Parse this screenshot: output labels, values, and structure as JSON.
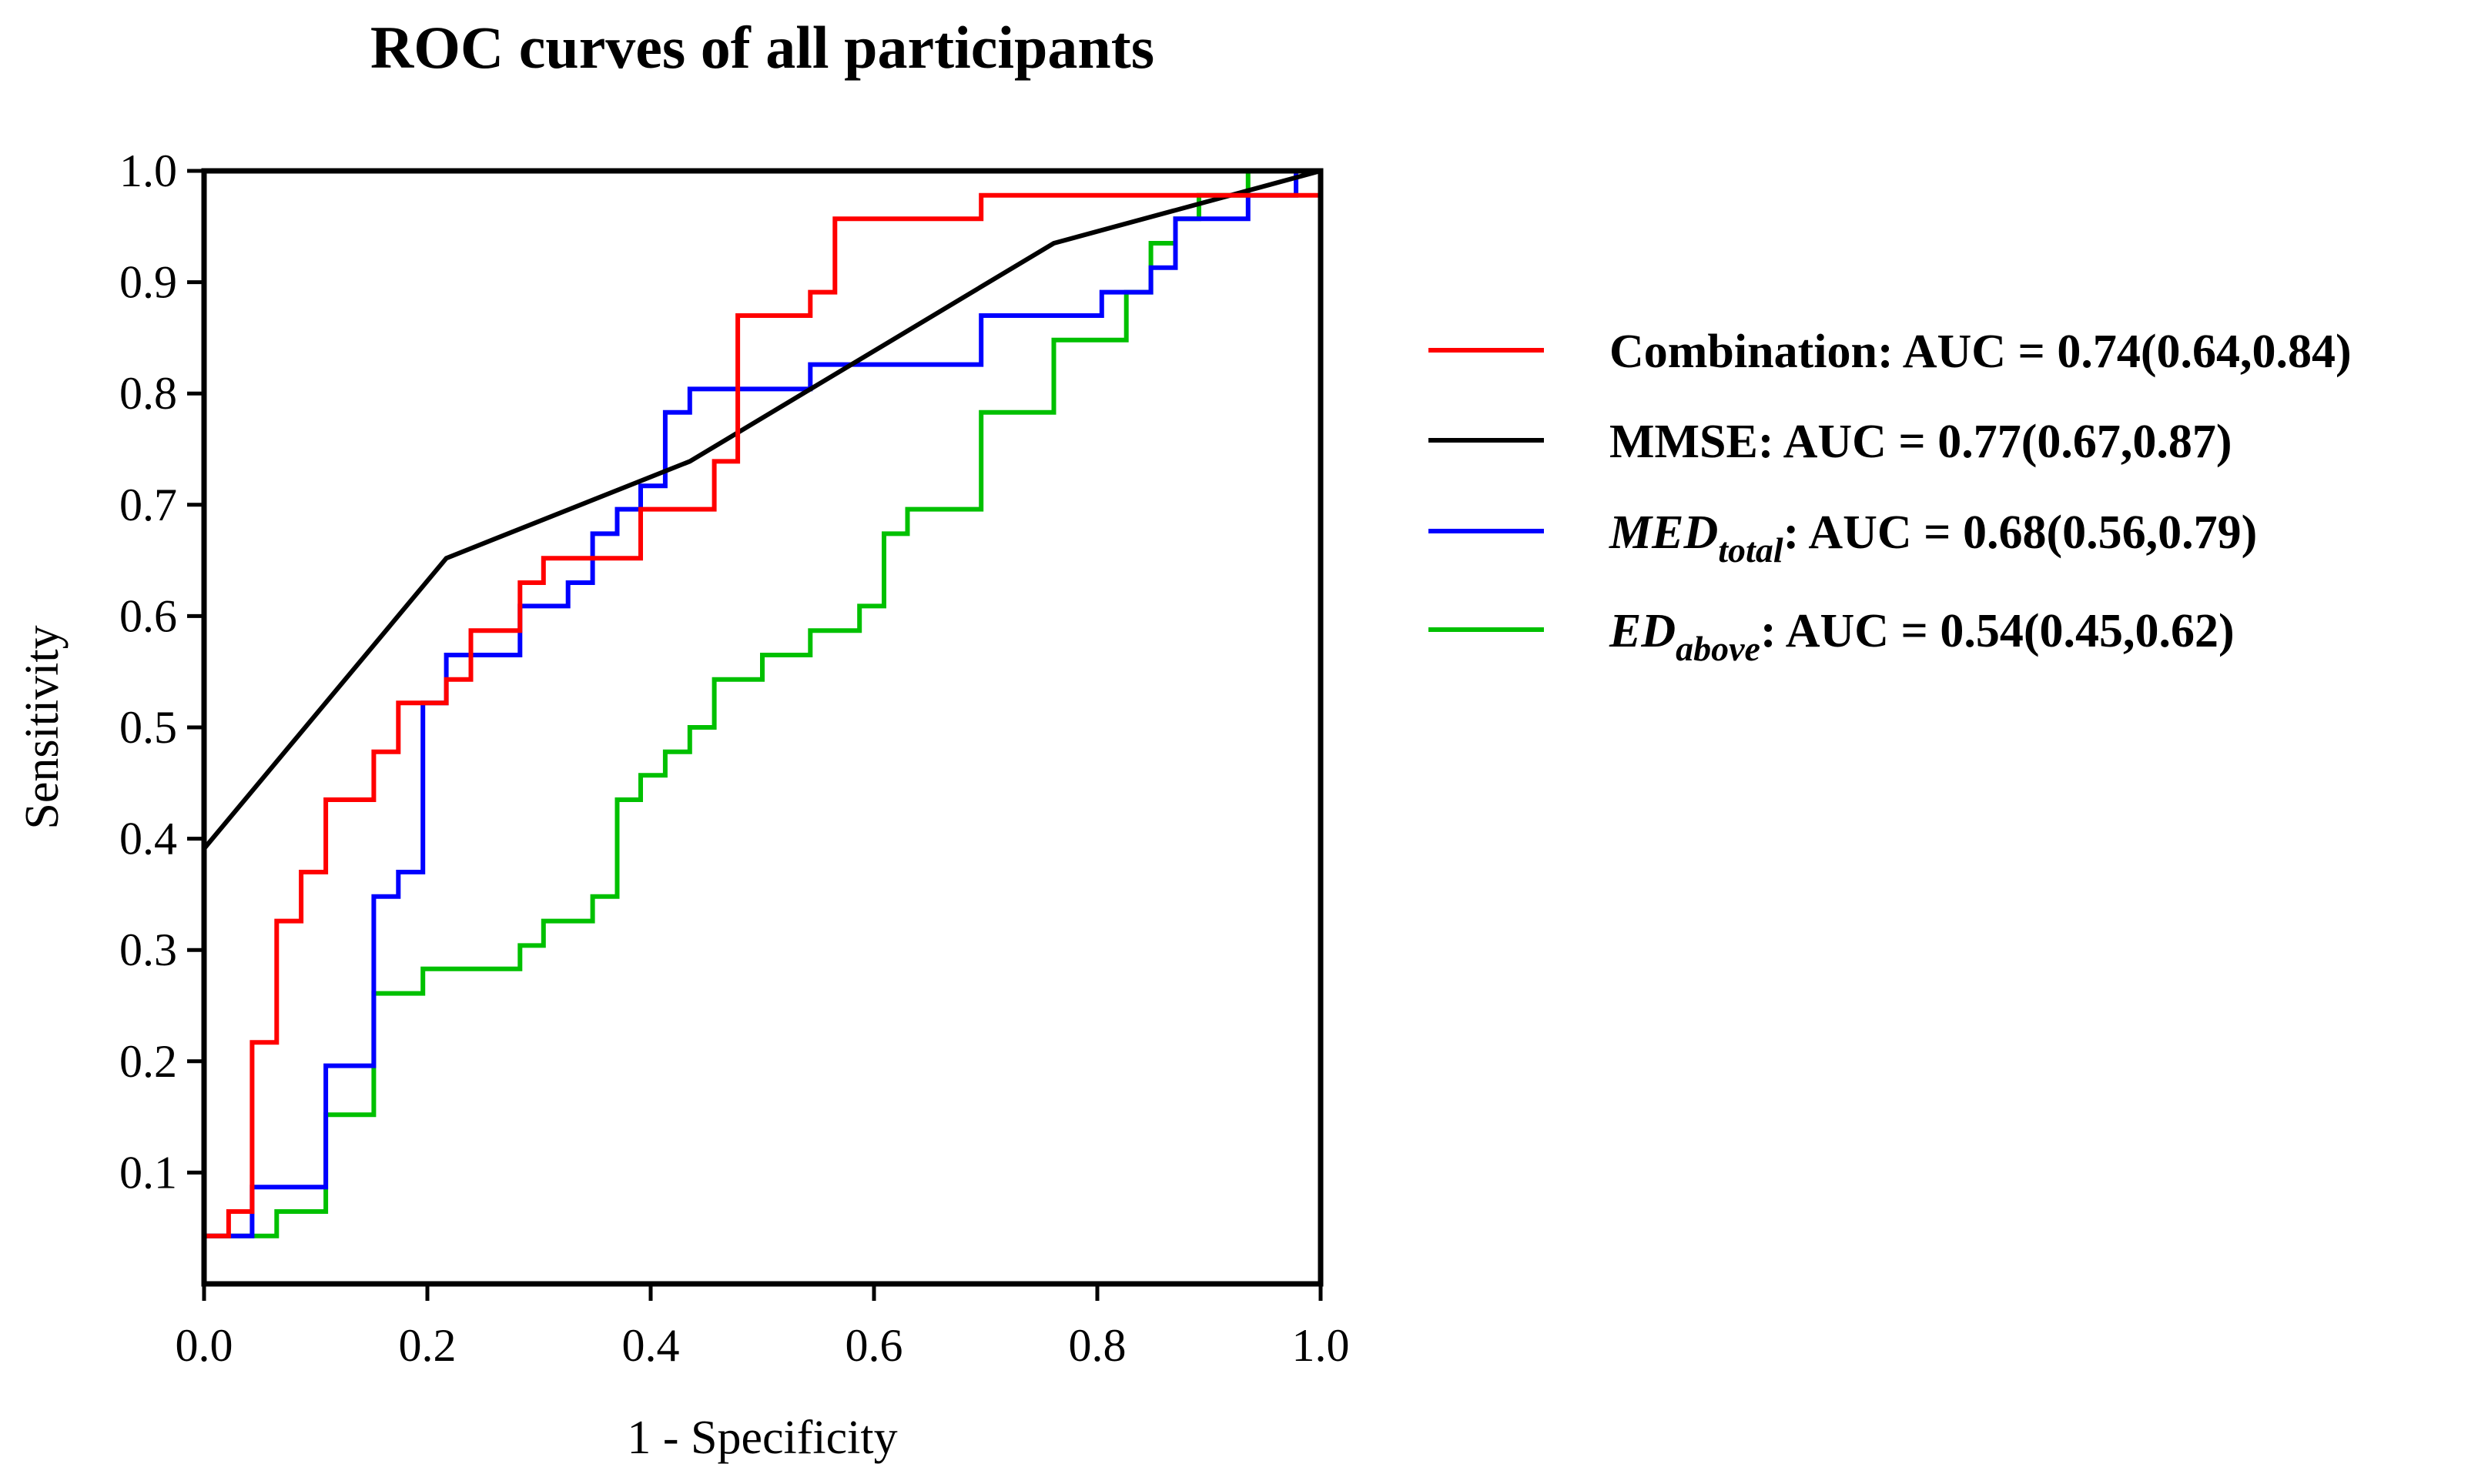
{
  "chart_data": {
    "type": "line",
    "title": "ROC curves of all participants",
    "xlabel": "1 - Specificity",
    "ylabel": "Sensitivity",
    "xlim": [
      0,
      1
    ],
    "ylim": [
      0,
      1
    ],
    "xticks": [
      "0.0",
      "0.2",
      "0.4",
      "0.6",
      "0.8",
      "1.0"
    ],
    "yticks": [
      "0.1",
      "0.2",
      "0.3",
      "0.4",
      "0.5",
      "0.6",
      "0.7",
      "0.8",
      "0.9",
      "1.0"
    ],
    "grid": false,
    "legend_position": "right",
    "series": [
      {
        "name": "Combination",
        "label_main": "Combination",
        "label_sub": "",
        "label_rest": ": AUC = 0.74(0.64,0.84)",
        "color": "#ff0000",
        "step": true,
        "points": [
          [
            0,
            0
          ],
          [
            0,
            0.043
          ],
          [
            0.022,
            0.043
          ],
          [
            0.022,
            0.065
          ],
          [
            0.043,
            0.065
          ],
          [
            0.043,
            0.217
          ],
          [
            0.065,
            0.217
          ],
          [
            0.065,
            0.326
          ],
          [
            0.087,
            0.326
          ],
          [
            0.087,
            0.37
          ],
          [
            0.109,
            0.37
          ],
          [
            0.109,
            0.435
          ],
          [
            0.152,
            0.435
          ],
          [
            0.152,
            0.478
          ],
          [
            0.174,
            0.478
          ],
          [
            0.174,
            0.522
          ],
          [
            0.217,
            0.522
          ],
          [
            0.217,
            0.543
          ],
          [
            0.239,
            0.543
          ],
          [
            0.239,
            0.587
          ],
          [
            0.283,
            0.587
          ],
          [
            0.283,
            0.63
          ],
          [
            0.304,
            0.63
          ],
          [
            0.304,
            0.652
          ],
          [
            0.391,
            0.652
          ],
          [
            0.391,
            0.696
          ],
          [
            0.457,
            0.696
          ],
          [
            0.457,
            0.739
          ],
          [
            0.478,
            0.739
          ],
          [
            0.478,
            0.87
          ],
          [
            0.543,
            0.87
          ],
          [
            0.543,
            0.891
          ],
          [
            0.565,
            0.891
          ],
          [
            0.565,
            0.957
          ],
          [
            0.696,
            0.957
          ],
          [
            0.696,
            0.978
          ],
          [
            1,
            0.978
          ],
          [
            1,
            1
          ]
        ]
      },
      {
        "name": "MMSE",
        "label_main": "MMSE",
        "label_sub": "",
        "label_rest": ": AUC = 0.77(0.67,0.87)",
        "color": "#000000",
        "step": false,
        "points": [
          [
            0,
            0.391
          ],
          [
            0.217,
            0.652
          ],
          [
            0.435,
            0.739
          ],
          [
            0.761,
            0.935
          ],
          [
            1,
            1
          ]
        ]
      },
      {
        "name": "MEDtotal",
        "label_main": "MED",
        "label_sub": "total",
        "label_rest": ": AUC = 0.68(0.56,0.79)",
        "color": "#0000ff",
        "step": true,
        "points": [
          [
            0,
            0
          ],
          [
            0,
            0.043
          ],
          [
            0.043,
            0.043
          ],
          [
            0.043,
            0.087
          ],
          [
            0.109,
            0.087
          ],
          [
            0.109,
            0.196
          ],
          [
            0.152,
            0.196
          ],
          [
            0.152,
            0.348
          ],
          [
            0.174,
            0.348
          ],
          [
            0.174,
            0.37
          ],
          [
            0.196,
            0.37
          ],
          [
            0.196,
            0.522
          ],
          [
            0.217,
            0.522
          ],
          [
            0.217,
            0.565
          ],
          [
            0.283,
            0.565
          ],
          [
            0.283,
            0.609
          ],
          [
            0.326,
            0.609
          ],
          [
            0.326,
            0.63
          ],
          [
            0.348,
            0.63
          ],
          [
            0.348,
            0.674
          ],
          [
            0.37,
            0.674
          ],
          [
            0.37,
            0.696
          ],
          [
            0.391,
            0.696
          ],
          [
            0.391,
            0.717
          ],
          [
            0.413,
            0.717
          ],
          [
            0.413,
            0.783
          ],
          [
            0.435,
            0.783
          ],
          [
            0.435,
            0.804
          ],
          [
            0.543,
            0.804
          ],
          [
            0.543,
            0.826
          ],
          [
            0.696,
            0.826
          ],
          [
            0.696,
            0.87
          ],
          [
            0.804,
            0.87
          ],
          [
            0.804,
            0.891
          ],
          [
            0.848,
            0.891
          ],
          [
            0.848,
            0.913
          ],
          [
            0.87,
            0.913
          ],
          [
            0.87,
            0.957
          ],
          [
            0.935,
            0.957
          ],
          [
            0.935,
            0.978
          ],
          [
            0.978,
            0.978
          ],
          [
            0.978,
            1
          ],
          [
            1,
            1
          ]
        ]
      },
      {
        "name": "EDabove",
        "label_main": "ED",
        "label_sub": "above",
        "label_rest": ": AUC = 0.54(0.45,0.62)",
        "color": "#00c000",
        "step": true,
        "points": [
          [
            0,
            0
          ],
          [
            0,
            0.043
          ],
          [
            0.065,
            0.043
          ],
          [
            0.065,
            0.065
          ],
          [
            0.109,
            0.065
          ],
          [
            0.109,
            0.152
          ],
          [
            0.152,
            0.152
          ],
          [
            0.152,
            0.261
          ],
          [
            0.196,
            0.261
          ],
          [
            0.196,
            0.283
          ],
          [
            0.283,
            0.283
          ],
          [
            0.283,
            0.304
          ],
          [
            0.304,
            0.304
          ],
          [
            0.304,
            0.326
          ],
          [
            0.348,
            0.326
          ],
          [
            0.348,
            0.348
          ],
          [
            0.37,
            0.348
          ],
          [
            0.37,
            0.435
          ],
          [
            0.391,
            0.435
          ],
          [
            0.391,
            0.457
          ],
          [
            0.413,
            0.457
          ],
          [
            0.413,
            0.478
          ],
          [
            0.435,
            0.478
          ],
          [
            0.435,
            0.5
          ],
          [
            0.457,
            0.5
          ],
          [
            0.457,
            0.543
          ],
          [
            0.5,
            0.543
          ],
          [
            0.5,
            0.565
          ],
          [
            0.543,
            0.565
          ],
          [
            0.543,
            0.587
          ],
          [
            0.587,
            0.587
          ],
          [
            0.587,
            0.609
          ],
          [
            0.609,
            0.609
          ],
          [
            0.609,
            0.674
          ],
          [
            0.63,
            0.674
          ],
          [
            0.63,
            0.696
          ],
          [
            0.696,
            0.696
          ],
          [
            0.696,
            0.783
          ],
          [
            0.761,
            0.783
          ],
          [
            0.761,
            0.848
          ],
          [
            0.826,
            0.848
          ],
          [
            0.826,
            0.891
          ],
          [
            0.848,
            0.891
          ],
          [
            0.848,
            0.935
          ],
          [
            0.87,
            0.935
          ],
          [
            0.87,
            0.957
          ],
          [
            0.891,
            0.957
          ],
          [
            0.891,
            0.978
          ],
          [
            0.935,
            0.978
          ],
          [
            0.935,
            1
          ],
          [
            1,
            1
          ]
        ]
      }
    ]
  }
}
